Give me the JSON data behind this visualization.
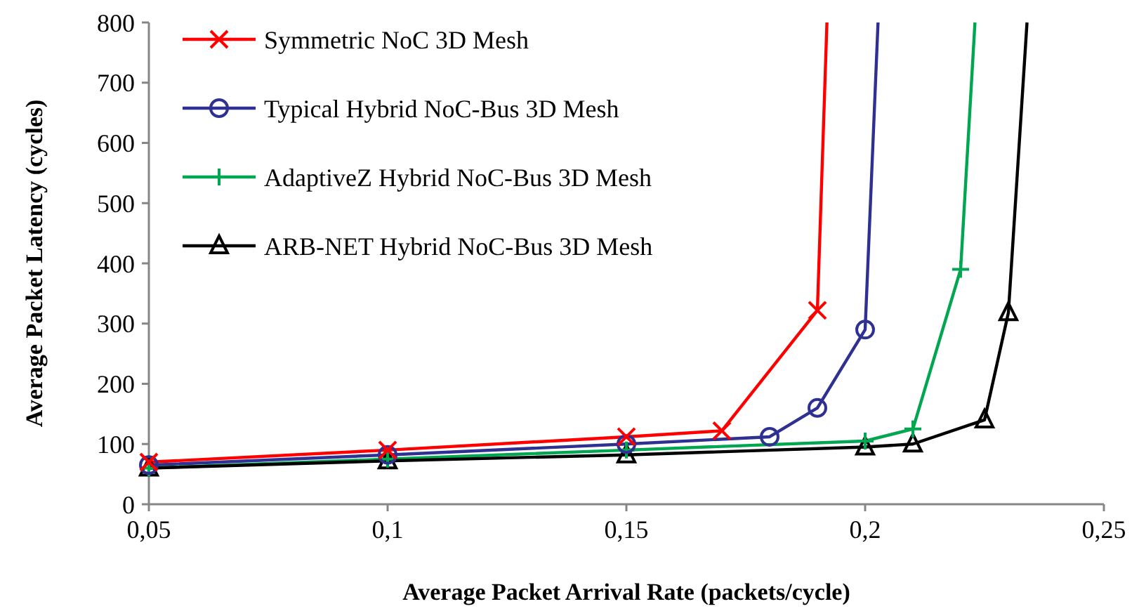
{
  "chart_data": {
    "type": "line",
    "xlabel": "Average Packet Arrival Rate (packets/cycle)",
    "ylabel": "Average Packet Latency (cycles)",
    "xlim": [
      0.05,
      0.25
    ],
    "xticks": [
      {
        "value": 0.05,
        "label": "0,05"
      },
      {
        "value": 0.1,
        "label": "0,1"
      },
      {
        "value": 0.15,
        "label": "0,15"
      },
      {
        "value": 0.2,
        "label": "0,2"
      },
      {
        "value": 0.25,
        "label": "0,25"
      }
    ],
    "ylim": [
      0,
      800
    ],
    "yticks": [
      0,
      100,
      200,
      300,
      400,
      500,
      600,
      700,
      800
    ],
    "grid": false,
    "legend": "top left",
    "line_style": "solid",
    "series": [
      {
        "name": "Symmetric NoC 3D Mesh",
        "color": "#ff0000",
        "marker": "cross",
        "x": [
          0.05,
          0.1,
          0.15,
          0.17,
          0.19,
          0.192
        ],
        "values": [
          70,
          90,
          112,
          122,
          322,
          800
        ]
      },
      {
        "name": "Typical Hybrid NoC-Bus 3D Mesh",
        "color": "#2e3192",
        "marker": "circle",
        "x": [
          0.05,
          0.1,
          0.15,
          0.18,
          0.19,
          0.2,
          0.2027
        ],
        "values": [
          65,
          82,
          100,
          112,
          160,
          290,
          800
        ]
      },
      {
        "name": "AdaptiveZ Hybrid NoC-Bus 3D Mesh",
        "color": "#00a650",
        "marker": "plus",
        "x": [
          0.05,
          0.1,
          0.15,
          0.2,
          0.21,
          0.22,
          0.223
        ],
        "values": [
          60,
          75,
          90,
          105,
          125,
          390,
          800
        ]
      },
      {
        "name": "ARB-NET Hybrid NoC-Bus 3D Mesh",
        "color": "#000000",
        "marker": "triangle",
        "x": [
          0.05,
          0.1,
          0.15,
          0.2,
          0.21,
          0.225,
          0.23,
          0.2339
        ],
        "values": [
          60,
          72,
          82,
          95,
          100,
          140,
          318,
          800
        ]
      }
    ]
  }
}
